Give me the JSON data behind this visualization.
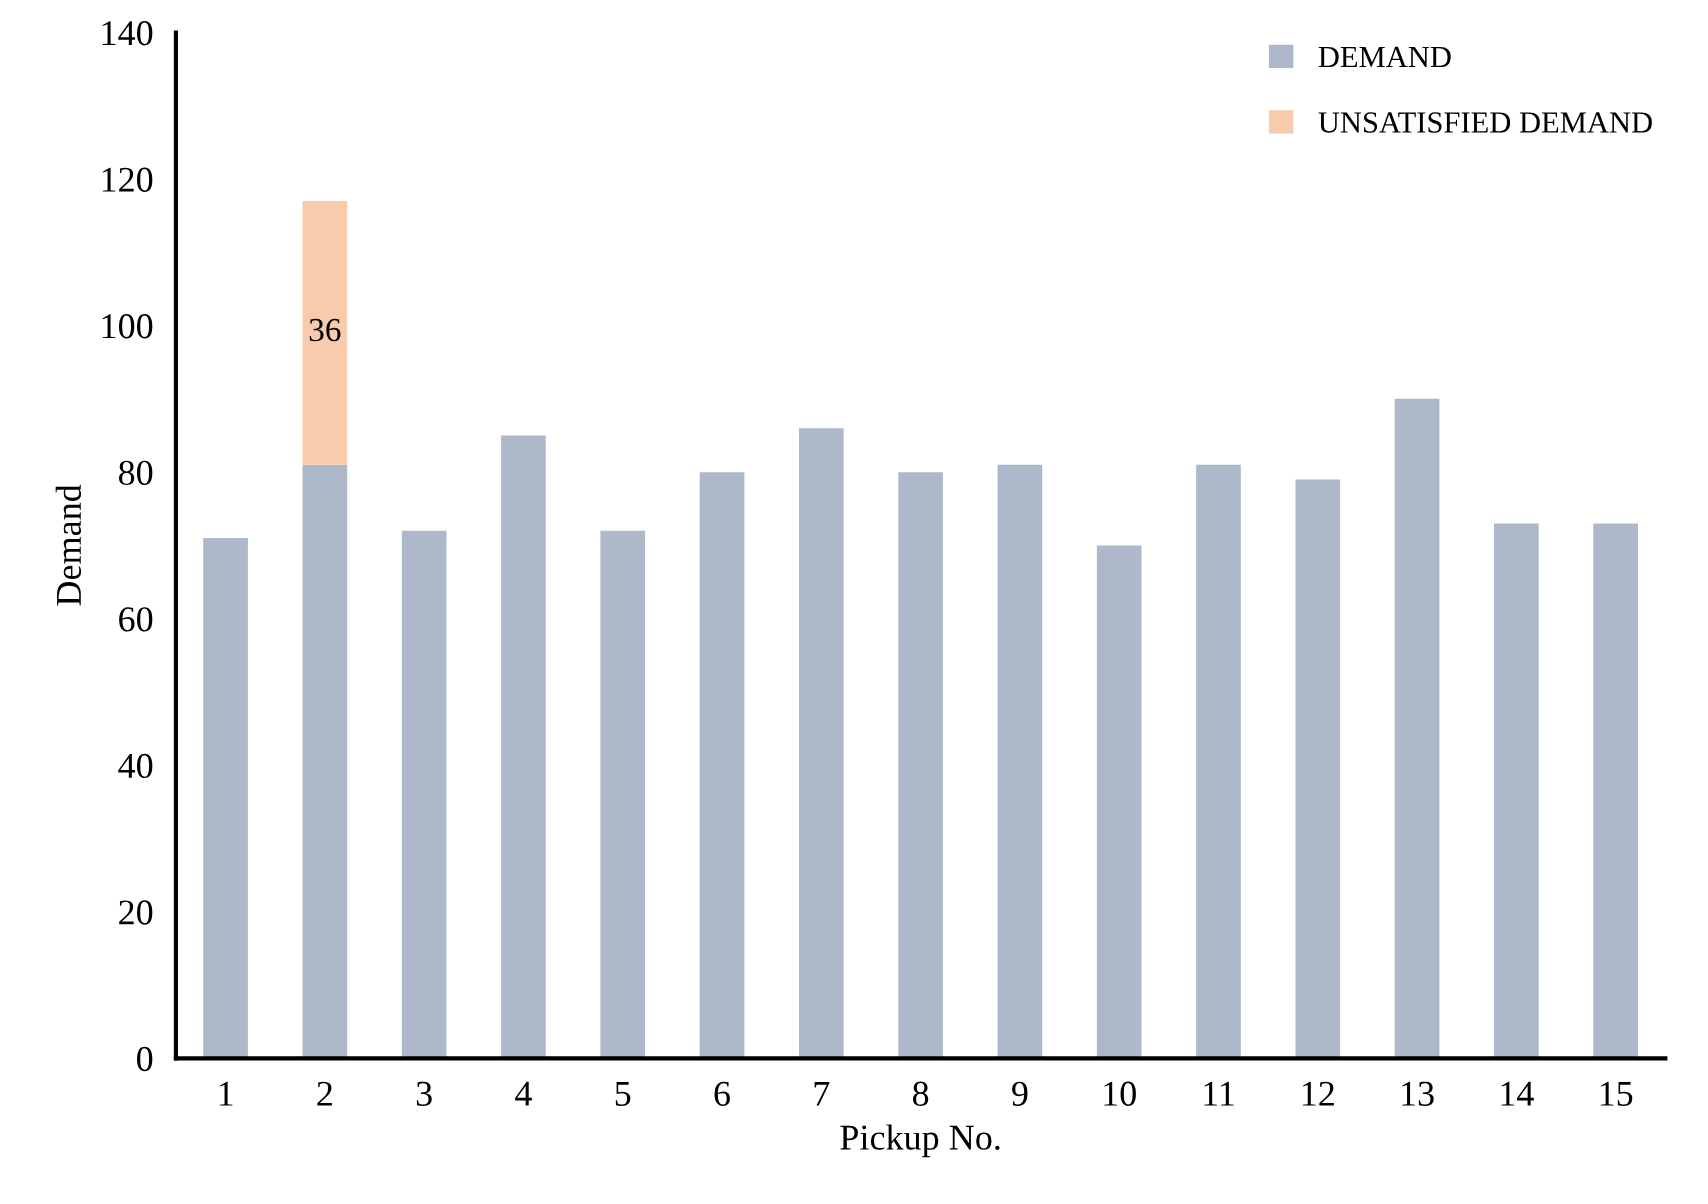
{
  "chart_data": {
    "type": "bar",
    "stacked": true,
    "xlabel": "Pickup No.",
    "ylabel": "Demand",
    "categories": [
      "1",
      "2",
      "3",
      "4",
      "5",
      "6",
      "7",
      "8",
      "9",
      "10",
      "11",
      "12",
      "13",
      "14",
      "15"
    ],
    "series": [
      {
        "name": "DEMAND",
        "color": "#adb9ca",
        "values": [
          71,
          81,
          72,
          85,
          72,
          80,
          86,
          80,
          81,
          70,
          81,
          79,
          90,
          73,
          73
        ]
      },
      {
        "name": "UNSATISFIED DEMAND",
        "color": "#f8cbad",
        "values": [
          null,
          36,
          null,
          null,
          null,
          null,
          null,
          null,
          null,
          null,
          null,
          null,
          null,
          null,
          null
        ],
        "value_labels": [
          null,
          "36",
          null,
          null,
          null,
          null,
          null,
          null,
          null,
          null,
          null,
          null,
          null,
          null,
          null
        ]
      }
    ],
    "ylim": [
      0,
      140
    ],
    "yticks": [
      0,
      20,
      40,
      60,
      80,
      100,
      120,
      140
    ],
    "grid": false,
    "legend": "top right"
  }
}
